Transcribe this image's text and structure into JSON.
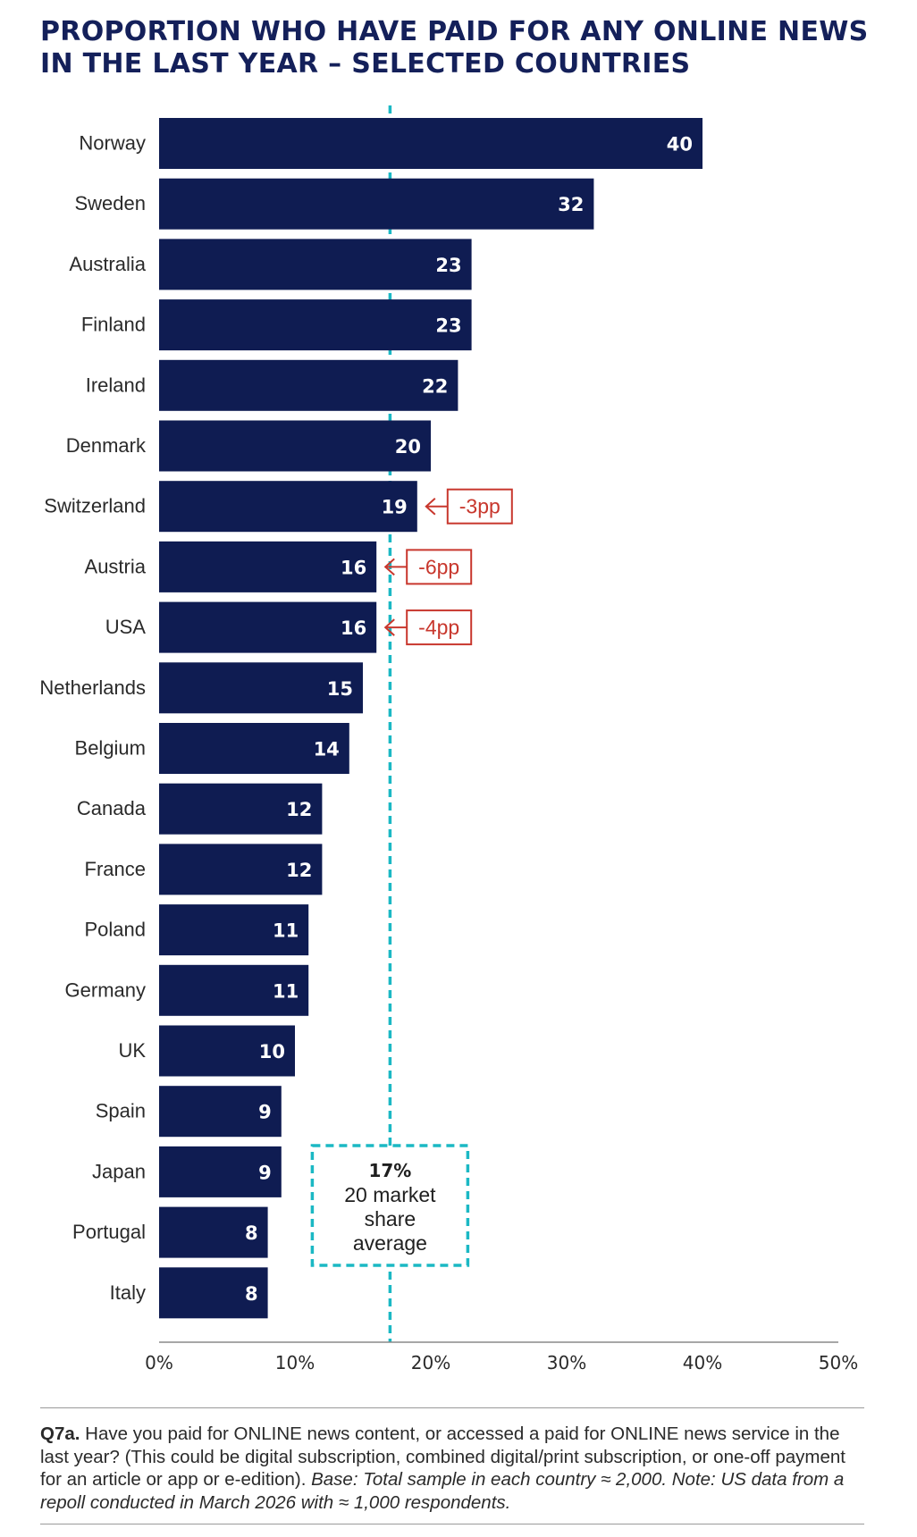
{
  "page": {
    "title": "PROPORTION WHO HAVE PAID FOR ANY ONLINE NEWS IN THE LAST YEAR – SELECTED COUNTRIES",
    "footnote": {
      "q_label": "Q7a.",
      "question": " Have you paid for ONLINE news content, or accessed a paid for ONLINE news service in the last year? (This could be digital subscription, combined digital/print subscription, or one-off payment for an article or app or e-edition). ",
      "base_note": "Base: Total sample in each country ≈ 2,000. Note: US data from a repoll conducted in March 2026 with ≈ 1,000 respondents."
    }
  },
  "colors": {
    "bar": "#0f1c52",
    "bar_label": "#ffffff",
    "average_line": "#1bb8c4",
    "change_callout": "#c8372d",
    "axis": "#8a8a8a",
    "title": "#14205a"
  },
  "chart_data": {
    "type": "bar",
    "orientation": "horizontal",
    "categories": [
      "Norway",
      "Sweden",
      "Australia",
      "Finland",
      "Ireland",
      "Denmark",
      "Switzerland",
      "Austria",
      "USA",
      "Netherlands",
      "Belgium",
      "Canada",
      "France",
      "Poland",
      "Germany",
      "UK",
      "Spain",
      "Japan",
      "Portugal",
      "Italy"
    ],
    "values": [
      40,
      32,
      23,
      23,
      22,
      20,
      19,
      16,
      16,
      15,
      14,
      12,
      12,
      11,
      11,
      10,
      9,
      9,
      8,
      8
    ],
    "xlim": [
      0,
      50
    ],
    "xticks": [
      0,
      10,
      20,
      30,
      40,
      50
    ],
    "xtick_labels": [
      "0%",
      "10%",
      "20%",
      "30%",
      "40%",
      "50%"
    ],
    "grid": false,
    "average": {
      "value": 17,
      "label_value": "17%",
      "label_text": [
        "20 market",
        "share",
        "average"
      ]
    },
    "annotations": [
      {
        "category": "Switzerland",
        "text": "-3pp"
      },
      {
        "category": "Austria",
        "text": "-6pp"
      },
      {
        "category": "USA",
        "text": "-4pp"
      }
    ]
  }
}
